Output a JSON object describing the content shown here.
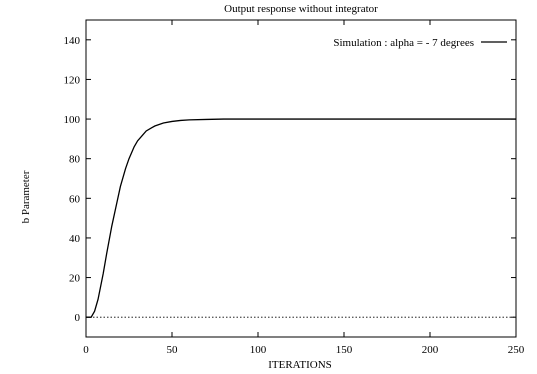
{
  "chart_data": {
    "type": "line",
    "title": "Output response without integrator",
    "xlabel": "ITERATIONS",
    "ylabel": "b Parameter",
    "xlim": [
      0,
      250
    ],
    "ylim": [
      -10,
      150
    ],
    "xticks": [
      0,
      50,
      100,
      150,
      200,
      250
    ],
    "yticks": [
      0,
      20,
      40,
      60,
      80,
      100,
      120,
      140
    ],
    "grid": false,
    "legend_position": "top-right",
    "zero_line": "dotted",
    "series": [
      {
        "name": "Simulation : alpha = - 7 degrees",
        "color": "#000000",
        "x": [
          0,
          3,
          5,
          7,
          10,
          12,
          15,
          18,
          20,
          23,
          25,
          28,
          30,
          33,
          35,
          38,
          40,
          45,
          50,
          55,
          60,
          70,
          80,
          90,
          100,
          120,
          150,
          200,
          250
        ],
        "y": [
          0,
          0,
          3,
          9,
          22,
          32,
          46,
          58,
          66,
          75,
          80,
          86,
          89,
          92,
          94,
          95.5,
          96.5,
          98,
          98.8,
          99.3,
          99.6,
          99.8,
          100,
          100,
          100,
          100,
          100,
          100,
          100
        ]
      }
    ]
  }
}
